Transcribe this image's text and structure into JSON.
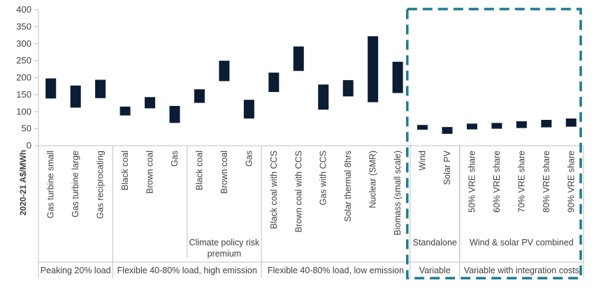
{
  "colors": {
    "bar": "#0b1c33",
    "axis": "#bfbfbf",
    "highlight_box": "#1b7c8c",
    "text": "#404040"
  },
  "chart_data": {
    "type": "floating-bar",
    "ylabel": "2020-21 A$/MWh",
    "ylim": [
      0,
      400
    ],
    "yticks": [
      0,
      50,
      100,
      150,
      200,
      250,
      300,
      350,
      400
    ],
    "categories": [
      "Gas turbine small",
      "Gas turbine large",
      "Gas reciprocating",
      "Black coal",
      "Brown coal",
      "Gas",
      "Black coal",
      "Brown coal",
      "Gas",
      "Black coal with CCS",
      "Brown coal with CCS",
      "Gas with CCS",
      "Solar thermal 8hrs",
      "Nuclear (SMR)",
      "Biomass (small scale)",
      "Wind",
      "Solar PV",
      "50% VRE share",
      "60% VRE share",
      "70% VRE share",
      "80% VRE share",
      "90% VRE share"
    ],
    "ranges": [
      [
        139,
        198
      ],
      [
        112,
        177
      ],
      [
        140,
        194
      ],
      [
        89,
        115
      ],
      [
        110,
        143
      ],
      [
        67,
        117
      ],
      [
        126,
        166
      ],
      [
        190,
        250
      ],
      [
        80,
        135
      ],
      [
        158,
        215
      ],
      [
        220,
        292
      ],
      [
        106,
        180
      ],
      [
        145,
        193
      ],
      [
        128,
        322
      ],
      [
        155,
        247
      ],
      [
        47,
        61
      ],
      [
        35,
        55
      ],
      [
        48,
        65
      ],
      [
        50,
        67
      ],
      [
        52,
        72
      ],
      [
        54,
        76
      ],
      [
        56,
        80
      ]
    ],
    "subgroups": [
      {
        "label": "",
        "start": 6,
        "end": 8,
        "sublabel": "Climate policy risk premium"
      },
      {
        "label": "",
        "start": 15,
        "end": 16,
        "sublabel": "Standalone"
      },
      {
        "label": "",
        "start": 17,
        "end": 21,
        "sublabel": "Wind & solar PV combined"
      }
    ],
    "groups": [
      {
        "label": "Peaking 20% load",
        "start": 0,
        "end": 2
      },
      {
        "label": "Flexible 40-80% load, high emission",
        "start": 3,
        "end": 8
      },
      {
        "label": "Flexible 40-80% load, low emission",
        "start": 9,
        "end": 14
      },
      {
        "label": "Variable",
        "start": 15,
        "end": 16
      },
      {
        "label": "Variable with integration costs",
        "start": 17,
        "end": 21
      }
    ],
    "highlight": {
      "start": 15,
      "end": 21,
      "style": "dashed box"
    },
    "grid": false,
    "legend": "none"
  }
}
